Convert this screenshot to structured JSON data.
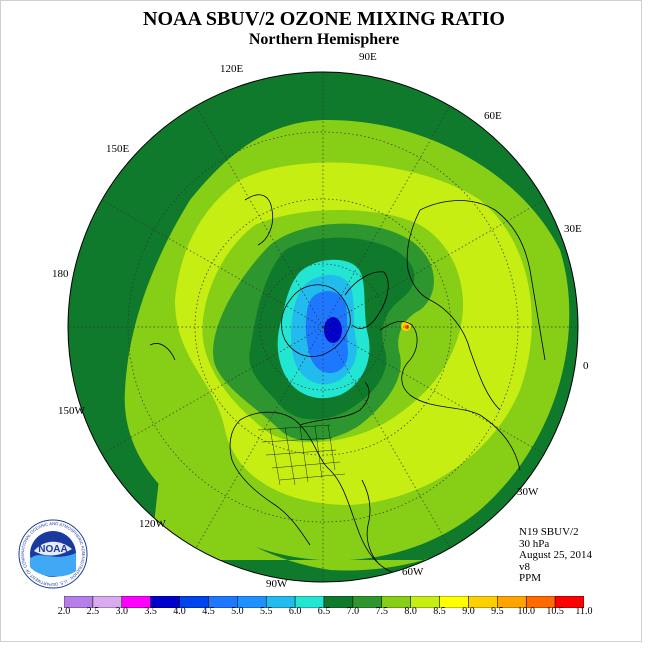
{
  "header": {
    "title": "NOAA SBUV/2 OZONE MIXING RATIO",
    "subtitle": "Northern Hemisphere"
  },
  "map": {
    "projection": "north-polar-stereographic",
    "longitude_labels": [
      "90E",
      "60E",
      "30E",
      "0",
      "30W",
      "60W",
      "90W",
      "120W",
      "150W",
      "180",
      "150E",
      "120E"
    ],
    "field_colors": {
      "outer_band": "#0f7a2c",
      "ring_mid": "#2e962f",
      "ring_light": "#86cf16",
      "yellow_green": "#c6ee13",
      "inner_cyan": "#22e5d2",
      "inner_blue": "#1e90ff",
      "core_blue": "#0000cc"
    }
  },
  "info": {
    "satellite": "N19 SBUV/2",
    "level": "30 hPa",
    "date": "August 25, 2014",
    "version": "v8",
    "units": "PPM"
  },
  "colorbar": {
    "labels": [
      "2.0",
      "2.5",
      "3.0",
      "3.5",
      "4.0",
      "4.5",
      "5.0",
      "5.5",
      "6.0",
      "6.5",
      "7.0",
      "7.5",
      "8.0",
      "8.5",
      "9.0",
      "9.5",
      "10.0",
      "10.5",
      "11.0"
    ],
    "colors": [
      "#b57ee8",
      "#d8aaf0",
      "#ff00ff",
      "#0000cc",
      "#0044ee",
      "#1e78ff",
      "#1e90ff",
      "#22bbee",
      "#22e5d2",
      "#0f7a2c",
      "#2e962f",
      "#86cf16",
      "#c6ee13",
      "#ffff00",
      "#ffd000",
      "#ffa500",
      "#ff6a00",
      "#ff0000",
      "#8b5a2b"
    ]
  },
  "logo": {
    "text": "NOAA",
    "ring_text": "NATIONAL OCEANIC AND ATMOSPHERIC ADMINISTRATION · U.S. DEPARTMENT OF COMMERCE"
  }
}
